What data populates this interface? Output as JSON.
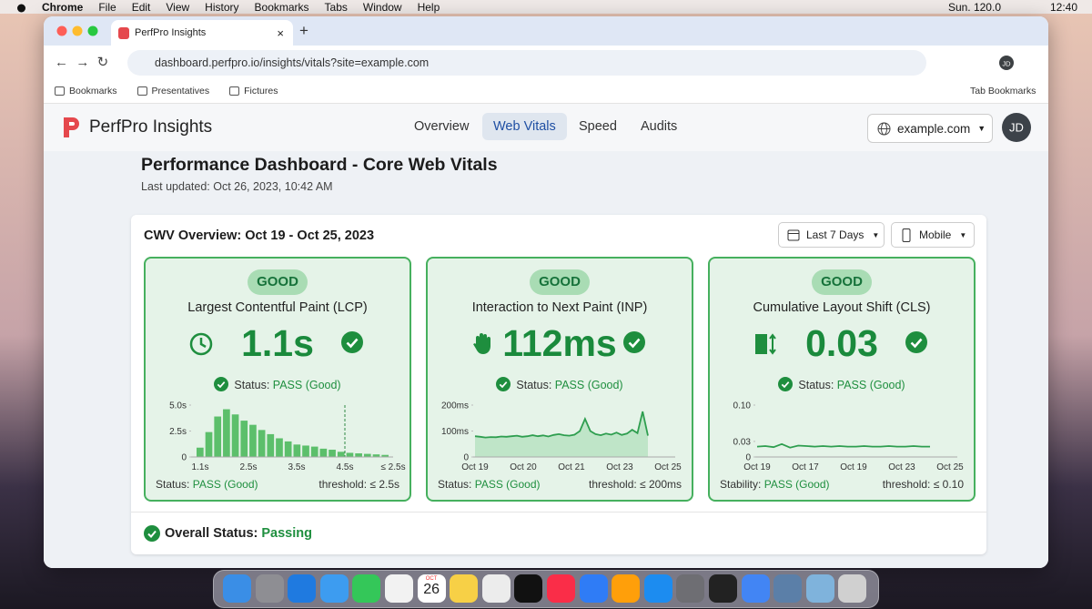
{
  "menu_bar": {
    "app": "Chrome",
    "items": [
      "File",
      "Edit",
      "View",
      "History",
      "Bookmarks",
      "Tabs",
      "Window",
      "Help"
    ],
    "date": "Sun. 120.0",
    "time": "12:40"
  },
  "browser": {
    "tab_title": "PerfPro Insights",
    "url": "dashboard.perfpro.io/insights/vitals?site=example.com",
    "profile": "JD",
    "bookmarks": [
      "Bookmarks",
      "Presentatives",
      "Fictures"
    ],
    "tab_bookmarks": "Tab Bookmarks"
  },
  "header": {
    "brand": "PerfPro Insights",
    "nav": [
      "Overview",
      "Web Vitals",
      "Speed",
      "Audits"
    ],
    "site": "example.com",
    "avatar": "JD"
  },
  "title": "Performance Dashboard - Core Web Vitals",
  "updated": "Last updated: Oct 26, 2023, 10:42 AM",
  "panel": {
    "title": "CWV Overview: Oct 19 - Oct 25, 2023",
    "filters": [
      "Last 7 Days",
      "Mobile"
    ],
    "cards": [
      {
        "badge": "GOOD",
        "name": "Largest Contentful Paint (LCP)",
        "value": "1.1s",
        "status_label": "Status:",
        "status": "PASS (Good)",
        "chart": {
          "type": "bar",
          "color": "#5cbf6b",
          "values": [
            0.9,
            2.4,
            3.9,
            4.6,
            4.1,
            3.5,
            3.1,
            2.6,
            2.2,
            1.8,
            1.5,
            1.2,
            1.1,
            1.0,
            0.8,
            0.7,
            0.5,
            0.4,
            0.35,
            0.3,
            0.25,
            0.2
          ],
          "ylim": [
            0,
            5
          ],
          "yticks": [
            0,
            {
              "value": 2.5,
              "label": "2.5s"
            },
            {
              "value": 5,
              "label": "5.0s"
            }
          ],
          "x_labels": [
            "1.1s",
            "2.5s",
            "3.5s",
            "4.5s",
            "≤ 2.5s"
          ]
        },
        "footer_label": "Status:",
        "footer_status": "PASS (Good)",
        "threshold": "threshold: ≤ 2.5s"
      },
      {
        "badge": "GOOD",
        "name": "Interaction to Next Paint (INP)",
        "value": "112ms",
        "status_label": "Status:",
        "status": "PASS (Good)",
        "chart": {
          "type": "area",
          "color": "#2e9e4f",
          "values": [
            80,
            78,
            75,
            77,
            76,
            79,
            78,
            80,
            82,
            78,
            80,
            84,
            80,
            83,
            79,
            85,
            88,
            84,
            82,
            86,
            100,
            147,
            100,
            88,
            84,
            90,
            86,
            94,
            85,
            90,
            105,
            92,
            175,
            82
          ],
          "ylim": [
            0,
            200
          ],
          "yticks": [
            0,
            {
              "value": 100,
              "label": "100ms"
            },
            {
              "value": 200,
              "label": "200ms"
            }
          ],
          "x_labels": [
            "Oct 19",
            "Oct 20",
            "Oct 21",
            "Oct 23",
            "Oct 25"
          ]
        },
        "footer_label": "Status:",
        "footer_status": "PASS (Good)",
        "threshold": "threshold: ≤ 200ms"
      },
      {
        "badge": "GOOD",
        "name": "Cumulative Layout Shift (CLS)",
        "value": "0.03",
        "status_label": "Status:",
        "status": "PASS (Good)",
        "chart": {
          "type": "line",
          "color": "#2e9e4f",
          "values": [
            0.02,
            0.021,
            0.019,
            0.025,
            0.018,
            0.022,
            0.021,
            0.02,
            0.021,
            0.02,
            0.021,
            0.02,
            0.02,
            0.021,
            0.02,
            0.02,
            0.021,
            0.02,
            0.02,
            0.021,
            0.02,
            0.02
          ],
          "ylim": [
            0,
            0.1
          ],
          "yticks": [
            0,
            0.03,
            {
              "value": 0.1,
              "label": "0.10"
            }
          ],
          "x_labels": [
            "Oct 19",
            "Oct 17",
            "Oct 19",
            "Oct 23",
            "Oct 25"
          ]
        },
        "footer_label": "Stability:",
        "footer_status": "PASS (Good)",
        "threshold": "threshold: ≤ 0.10"
      }
    ],
    "overall_label": "Overall Status:",
    "overall_value": "Passing"
  },
  "dock": {
    "calendar_month": "OCT",
    "calendar_day": "26"
  }
}
